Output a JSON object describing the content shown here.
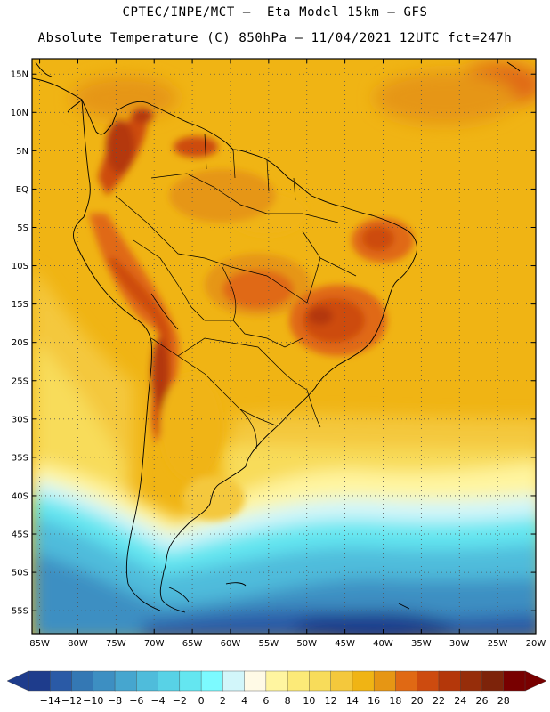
{
  "header": {
    "line1": "CPTEC/INPE/MCT –  Eta Model 15km – GFS",
    "line2": "Absolute Temperature (C) 850hPa – 11/04/2021 12UTC fct=247h"
  },
  "map": {
    "lat_labels": [
      "15N",
      "10N",
      "5N",
      "EQ",
      "5S",
      "10S",
      "15S",
      "20S",
      "25S",
      "30S",
      "35S",
      "40S",
      "45S",
      "50S",
      "55S"
    ],
    "lon_labels": [
      "85W",
      "80W",
      "75W",
      "70W",
      "65W",
      "60W",
      "55W",
      "50W",
      "45W",
      "40W",
      "35W",
      "30W",
      "25W",
      "20W"
    ],
    "extent": {
      "lon": [
        -86,
        -20
      ],
      "lat": [
        -58,
        17
      ]
    },
    "grid": "dotted",
    "field": "temperature_850hPa_C"
  },
  "colorbar": {
    "labels": [
      "-14",
      "-12",
      "-10",
      "-8",
      "-6",
      "-4",
      "-2",
      "0",
      "2",
      "4",
      "6",
      "8",
      "10",
      "12",
      "14",
      "16",
      "18",
      "20",
      "22",
      "24",
      "26",
      "28"
    ],
    "colors": [
      "#1e3c8c",
      "#2a5aa6",
      "#3478b4",
      "#3d8fc2",
      "#46a6cf",
      "#4fbcdb",
      "#58d2e6",
      "#64e6f0",
      "#7cfaff",
      "#d2f6fa",
      "#fffae6",
      "#fff5a0",
      "#fcea78",
      "#f8dc5a",
      "#f4c83c",
      "#f0b414",
      "#e69614",
      "#e06914",
      "#cd4b0f",
      "#b4370a",
      "#962d0a",
      "#7d230a",
      "#780000"
    ],
    "under_color": "#1e3c8c",
    "over_color": "#780000"
  }
}
